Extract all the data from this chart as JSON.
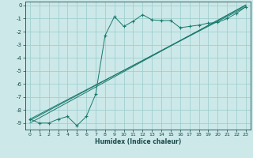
{
  "xlabel": "Humidex (Indice chaleur)",
  "bg_color": "#cce8e8",
  "grid_color": "#99cccc",
  "line_color": "#1a7a6e",
  "xlim": [
    -0.5,
    23.5
  ],
  "ylim": [
    -9.5,
    0.3
  ],
  "xticks": [
    0,
    1,
    2,
    3,
    4,
    5,
    6,
    7,
    8,
    9,
    10,
    11,
    12,
    13,
    14,
    15,
    16,
    17,
    18,
    19,
    20,
    21,
    22,
    23
  ],
  "yticks": [
    0,
    -1,
    -2,
    -3,
    -4,
    -5,
    -6,
    -7,
    -8,
    -9
  ],
  "line1_x": [
    0,
    1,
    2,
    3,
    4,
    5,
    6,
    7,
    8,
    9,
    10,
    11,
    12,
    13,
    14,
    15,
    16,
    17,
    18,
    19,
    20,
    21,
    22,
    23
  ],
  "line1_y": [
    -8.7,
    -9.0,
    -9.0,
    -8.7,
    -8.5,
    -9.2,
    -8.5,
    -6.8,
    -2.3,
    -0.85,
    -1.6,
    -1.2,
    -0.7,
    -1.1,
    -1.15,
    -1.15,
    -1.7,
    -1.6,
    -1.5,
    -1.35,
    -1.3,
    -1.0,
    -0.6,
    -0.1
  ],
  "line2_x": [
    0,
    23
  ],
  "line2_y": [
    -8.7,
    -0.1
  ],
  "line3_x": [
    0,
    23
  ],
  "line3_y": [
    -8.8,
    0.0
  ],
  "line4_x": [
    0,
    23
  ],
  "line4_y": [
    -9.0,
    0.05
  ]
}
